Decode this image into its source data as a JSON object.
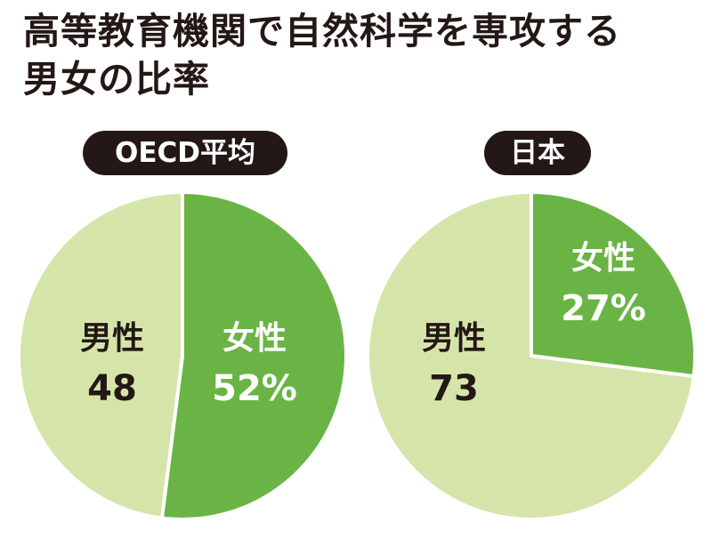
{
  "title_lines": [
    "高等教育機関で自然科学を専攻する",
    "男女の比率"
  ],
  "colors": {
    "female": "#6ab445",
    "male": "#d5e5aa",
    "dark": "#231815",
    "white": "#ffffff"
  },
  "chart_data": [
    {
      "type": "pie",
      "title": "OECD平均",
      "slices": [
        {
          "label": "女性",
          "value": 52,
          "display": "52%",
          "color": "#6ab445",
          "text_color": "#ffffff"
        },
        {
          "label": "男性",
          "value": 48,
          "display": "48",
          "color": "#d5e5aa",
          "text_color": "#231815"
        }
      ]
    },
    {
      "type": "pie",
      "title": "日本",
      "slices": [
        {
          "label": "女性",
          "value": 27,
          "display": "27%",
          "color": "#6ab445",
          "text_color": "#ffffff"
        },
        {
          "label": "男性",
          "value": 73,
          "display": "73",
          "color": "#d5e5aa",
          "text_color": "#231815"
        }
      ]
    }
  ]
}
